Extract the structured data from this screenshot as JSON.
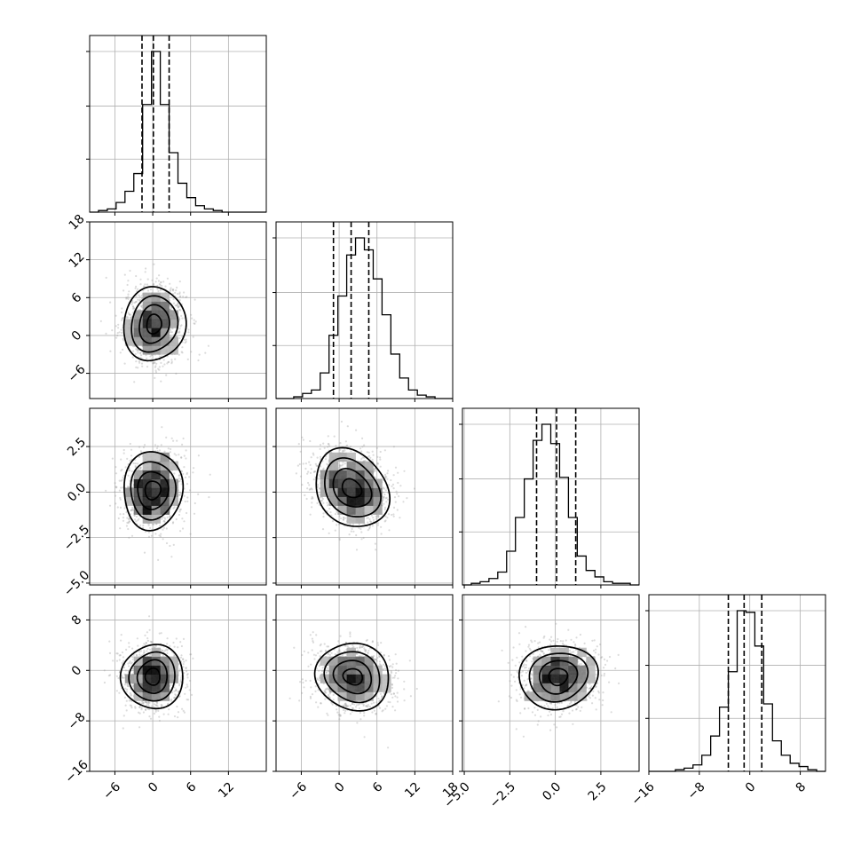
{
  "chart_data": {
    "type": "corner",
    "parameters": 4,
    "grid": true,
    "colors": {
      "frame": "#000000",
      "grid": "#b0b0b0",
      "points": "#9a9a9a"
    },
    "axes": [
      {
        "range": [
          -10,
          18
        ],
        "ticks": [
          -6,
          0,
          6,
          12
        ],
        "tick_labels": [
          "−6",
          "0",
          "6",
          "12"
        ]
      },
      {
        "range": [
          -10,
          18
        ],
        "ticks": [
          -6,
          0,
          6,
          12,
          18
        ],
        "tick_labels": [
          "−6",
          "0",
          "6",
          "12",
          "18"
        ]
      },
      {
        "range": [
          -5.1,
          4.6
        ],
        "ticks": [
          -5.0,
          -2.5,
          0.0,
          2.5
        ],
        "tick_labels": [
          "−5.0",
          "−2.5",
          "0.0",
          "2.5"
        ]
      },
      {
        "range": [
          -16,
          12
        ],
        "ticks": [
          -16,
          -8,
          0,
          8
        ],
        "tick_labels": [
          "−16",
          "−8",
          "0",
          "8"
        ]
      }
    ],
    "histograms": [
      {
        "parameter": 0,
        "bin_start": -10,
        "bin_width": 1.4,
        "counts": [
          0,
          1,
          2,
          6,
          13,
          24,
          67,
          100,
          67,
          37,
          18,
          9,
          4,
          2,
          1,
          0,
          0,
          0,
          0,
          0
        ],
        "quantiles": [
          -1.7,
          0.1,
          2.6
        ]
      },
      {
        "parameter": 1,
        "bin_start": -10,
        "bin_width": 1.4,
        "counts": [
          0,
          0,
          1,
          3,
          5,
          15,
          37,
          60,
          84,
          94,
          87,
          70,
          49,
          26,
          12,
          5,
          2,
          1,
          0,
          0
        ],
        "quantiles": [
          -0.9,
          1.9,
          4.7
        ]
      },
      {
        "parameter": 2,
        "bin_start": -5.1,
        "bin_width": 0.485,
        "counts": [
          0,
          1,
          2,
          4,
          8,
          21,
          42,
          66,
          90,
          100,
          88,
          67,
          42,
          18,
          9,
          5,
          2,
          1,
          1,
          0
        ],
        "quantiles": [
          -1.03,
          0.07,
          1.12
        ]
      },
      {
        "parameter": 3,
        "bin_start": -16,
        "bin_width": 1.4,
        "counts": [
          0,
          0,
          0,
          1,
          2,
          4,
          10,
          22,
          40,
          62,
          100,
          99,
          78,
          42,
          19,
          10,
          5,
          3,
          1,
          0
        ],
        "quantiles": [
          -3.4,
          -0.9,
          1.9
        ]
      }
    ],
    "pairs": [
      {
        "x": 0,
        "y": 1,
        "center": [
          0.2,
          1.8
        ],
        "sd": [
          2.4,
          3.0
        ],
        "corr": 0.06
      },
      {
        "x": 0,
        "y": 2,
        "center": [
          0.0,
          0.1
        ],
        "sd": [
          2.4,
          1.05
        ],
        "corr": 0.05
      },
      {
        "x": 1,
        "y": 2,
        "center": [
          2.0,
          0.2
        ],
        "sd": [
          3.0,
          1.05
        ],
        "corr": -0.22
      },
      {
        "x": 0,
        "y": 3,
        "center": [
          0.0,
          -1.0
        ],
        "sd": [
          2.4,
          2.6
        ],
        "corr": 0.0
      },
      {
        "x": 1,
        "y": 3,
        "center": [
          2.2,
          -1.0
        ],
        "sd": [
          3.0,
          2.6
        ],
        "corr": -0.1
      },
      {
        "x": 2,
        "y": 3,
        "center": [
          0.15,
          -1.0
        ],
        "sd": [
          1.05,
          2.6
        ],
        "corr": 0.05
      }
    ],
    "contour_levels_sigma": [
      0.5,
      1.0,
      1.5,
      2.0
    ]
  }
}
